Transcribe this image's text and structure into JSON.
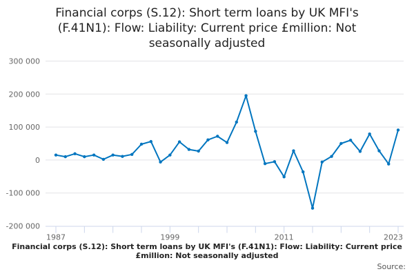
{
  "chart_data": {
    "type": "line",
    "title": "Financial corps (S.12): Short term loans by UK MFI's (F.41N1): Flow: Liability: Current price £million: Not seasonally adjusted",
    "xlabel": "",
    "ylabel": "",
    "x": [
      1987,
      1988,
      1989,
      1990,
      1991,
      1992,
      1993,
      1994,
      1995,
      1996,
      1997,
      1998,
      1999,
      2000,
      2001,
      2002,
      2003,
      2004,
      2005,
      2006,
      2007,
      2008,
      2009,
      2010,
      2011,
      2012,
      2013,
      2014,
      2015,
      2016,
      2017,
      2018,
      2019,
      2020,
      2021,
      2022,
      2023
    ],
    "values": [
      15000,
      10000,
      19000,
      10000,
      15000,
      2000,
      15000,
      11000,
      17000,
      48000,
      56000,
      -6000,
      15000,
      55000,
      32000,
      27000,
      61000,
      72000,
      53000,
      115000,
      195000,
      87000,
      -11000,
      -5000,
      -51000,
      28000,
      -36000,
      -146000,
      -6000,
      11000,
      50000,
      60000,
      26000,
      79000,
      28000,
      -12000,
      91000
    ],
    "ylim": [
      -200000,
      300000
    ],
    "yticks": [
      300000,
      200000,
      100000,
      0,
      -100000,
      -200000
    ],
    "ytick_labels": [
      "300 000",
      "200 000",
      "100 000",
      "0",
      "-100 000",
      "-200 000"
    ],
    "xtick_labels": [
      "1987",
      "1999",
      "2011",
      "2023"
    ],
    "grid": true,
    "line_color": "#0075bf"
  },
  "footer": {
    "title": "Financial corps (S.12): Short term loans by UK MFI's (F.41N1): Flow: Liability: Current price £million: Not seasonally adjusted",
    "source": "Source:"
  }
}
